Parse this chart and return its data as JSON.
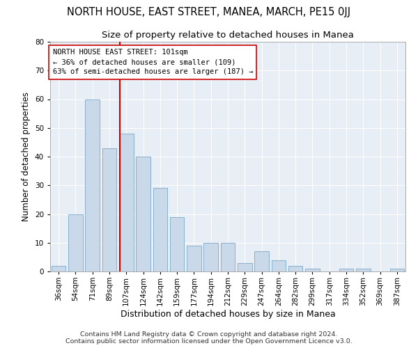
{
  "title": "NORTH HOUSE, EAST STREET, MANEA, MARCH, PE15 0JJ",
  "subtitle": "Size of property relative to detached houses in Manea",
  "xlabel": "Distribution of detached houses by size in Manea",
  "ylabel": "Number of detached properties",
  "categories": [
    "36sqm",
    "54sqm",
    "71sqm",
    "89sqm",
    "107sqm",
    "124sqm",
    "142sqm",
    "159sqm",
    "177sqm",
    "194sqm",
    "212sqm",
    "229sqm",
    "247sqm",
    "264sqm",
    "282sqm",
    "299sqm",
    "317sqm",
    "334sqm",
    "352sqm",
    "369sqm",
    "387sqm"
  ],
  "values": [
    2,
    20,
    60,
    43,
    48,
    40,
    29,
    19,
    9,
    10,
    10,
    3,
    7,
    4,
    2,
    1,
    0,
    1,
    1,
    0,
    1
  ],
  "bar_color": "#c9d9ea",
  "bar_edge_color": "#7aa8c8",
  "vline_x_index": 4,
  "vline_color": "#cc0000",
  "annotation_line1": "NORTH HOUSE EAST STREET: 101sqm",
  "annotation_line2": "← 36% of detached houses are smaller (109)",
  "annotation_line3": "63% of semi-detached houses are larger (187) →",
  "annotation_box_color": "#ffffff",
  "annotation_box_edge": "#cc0000",
  "footer_line1": "Contains HM Land Registry data © Crown copyright and database right 2024.",
  "footer_line2": "Contains public sector information licensed under the Open Government Licence v3.0.",
  "ylim": [
    0,
    80
  ],
  "yticks": [
    0,
    10,
    20,
    30,
    40,
    50,
    60,
    70,
    80
  ],
  "title_fontsize": 10.5,
  "subtitle_fontsize": 9.5,
  "xlabel_fontsize": 9,
  "ylabel_fontsize": 8.5,
  "tick_fontsize": 7.5,
  "annotation_fontsize": 7.5,
  "footer_fontsize": 6.8
}
